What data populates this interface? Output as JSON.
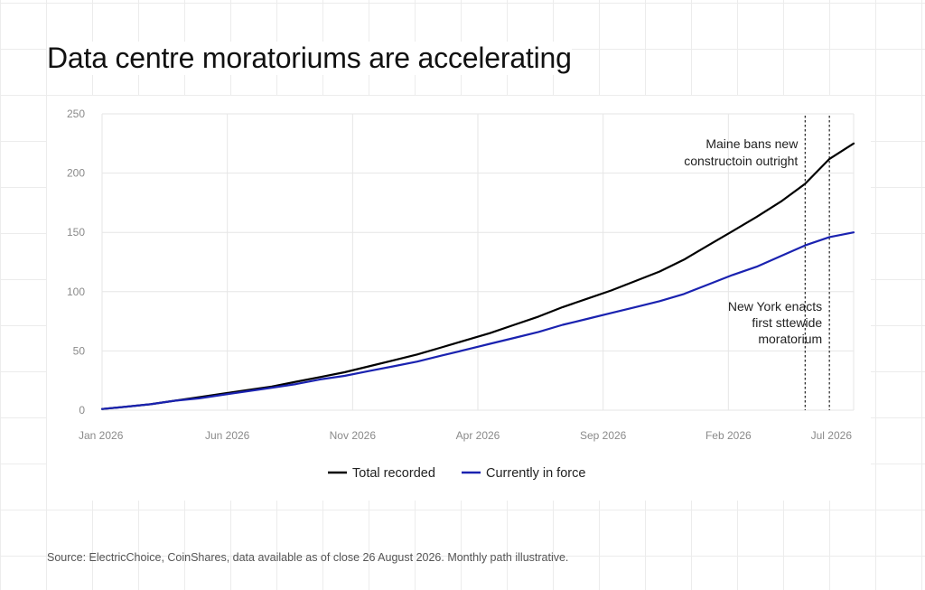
{
  "title": "Data centre moratoriums are accelerating",
  "source": "Source: ElectricChoice, CoinShares, data available as of close 26 August 2026. Monthly path illustrative.",
  "chart_data": {
    "type": "line",
    "title": "Data centre moratoriums are accelerating",
    "xlabel": "",
    "ylabel": "",
    "ylim": [
      0,
      250
    ],
    "yticks": [
      0,
      50,
      100,
      150,
      200,
      250
    ],
    "xtick_labels": [
      "Jan 2026",
      "Jun 2026",
      "Nov 2026",
      "Apr 2026",
      "Sep 2026",
      "Feb 2026",
      "Jul 2026"
    ],
    "x": [
      "Jan",
      "Feb",
      "Mar",
      "Apr",
      "May",
      "Jun",
      "Jul",
      "Aug",
      "Sep",
      "Oct",
      "Nov",
      "Dec",
      "Jan",
      "Feb",
      "Mar",
      "Apr",
      "May",
      "Jun",
      "Jul",
      "Aug",
      "Sep",
      "Oct",
      "Nov",
      "Dec",
      "Jan",
      "Feb",
      "Mar",
      "Apr",
      "May",
      "Jun",
      "Jul",
      "Aug"
    ],
    "grid": true,
    "legend_position": "bottom",
    "series": [
      {
        "name": "Total recorded",
        "color": "#000000",
        "values": [
          1,
          3,
          5,
          8,
          11,
          14,
          17,
          20,
          24,
          28,
          32,
          37,
          42,
          47,
          53,
          59,
          65,
          72,
          79,
          87,
          94,
          101,
          109,
          117,
          127,
          139,
          151,
          163,
          176,
          191,
          212,
          225
        ]
      },
      {
        "name": "Currently in force",
        "color": "#1a22b0",
        "values": [
          1,
          3,
          5,
          8,
          10,
          13,
          16,
          19,
          22,
          26,
          29,
          33,
          37,
          41,
          46,
          51,
          56,
          61,
          66,
          72,
          77,
          82,
          87,
          92,
          98,
          106,
          114,
          121,
          130,
          139,
          146,
          150
        ]
      }
    ],
    "annotations": [
      {
        "x_index": 29,
        "lines": [
          "Maine bans new",
          "constructoin outright"
        ],
        "align": "right"
      },
      {
        "x_index": 30,
        "lines": [
          "New York enacts",
          "first sttewide",
          "moratorium"
        ],
        "align": "right"
      }
    ]
  }
}
